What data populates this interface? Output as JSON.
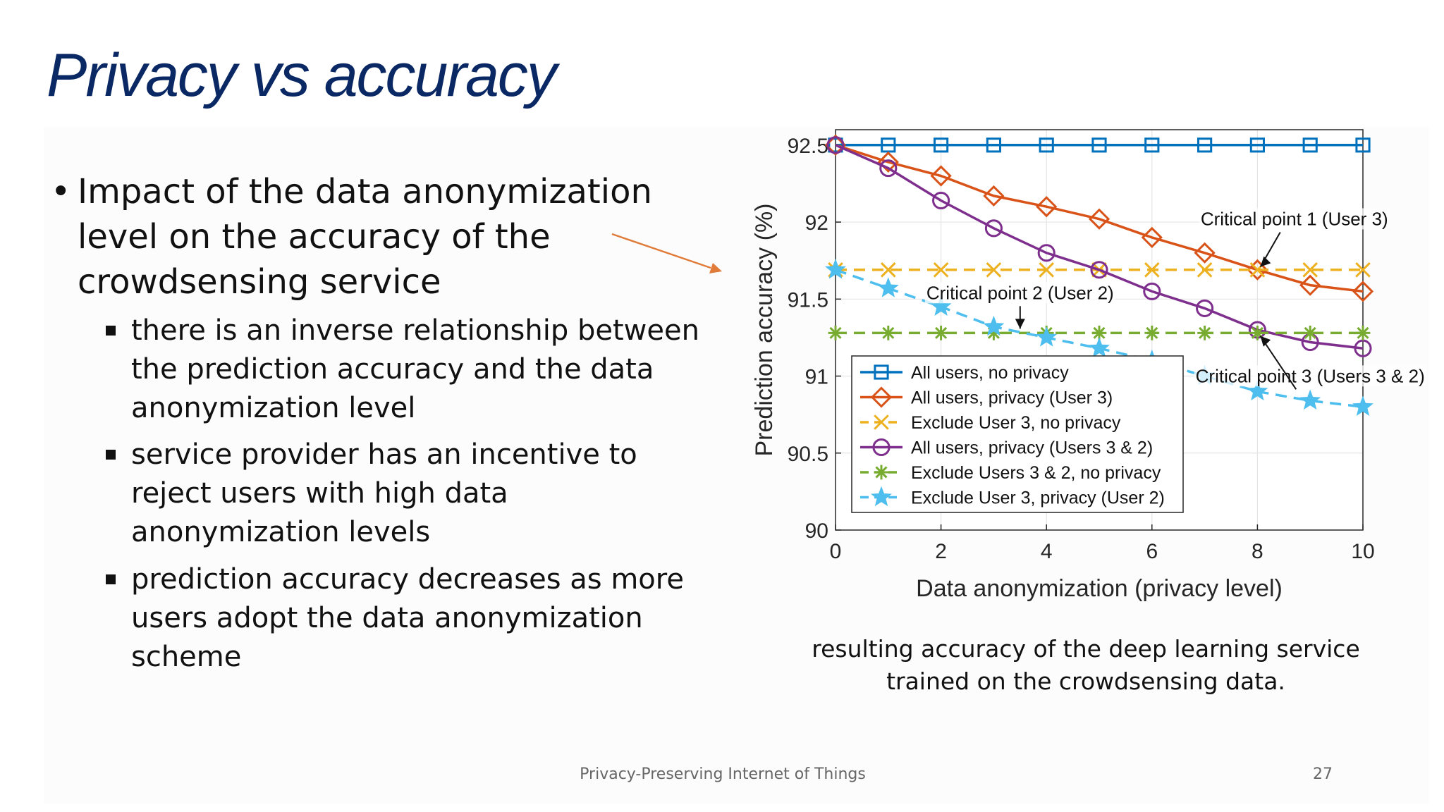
{
  "slide": {
    "title": "Privacy vs accuracy",
    "bullet": "Impact of the data anonymization level on the accuracy of the crowdsensing service",
    "sub_bullets": [
      "there is an inverse relationship between the prediction accuracy and the data anonymization level",
      "service provider has an incentive to reject users with high data anonymization levels",
      "prediction accuracy decreases as more users adopt the data anonymization scheme"
    ],
    "caption": "resulting accuracy of the deep learning service trained on the crowdsensing data.",
    "footer": "Privacy-Preserving Internet of Things",
    "page_number": "27",
    "arrow_color": "#e07b39",
    "title_color": "#0a2864"
  },
  "chart_data": {
    "type": "line",
    "title": "",
    "xlabel": "Data anonymization (privacy level)",
    "ylabel": "Prediction accuracy (%)",
    "xlim": [
      0,
      10
    ],
    "ylim": [
      90,
      92.5
    ],
    "xticks": [
      0,
      2,
      4,
      6,
      8,
      10
    ],
    "yticks": [
      90,
      90.5,
      91,
      91.5,
      92,
      92.5
    ],
    "ytick_labels": [
      "90",
      "90.5",
      "91",
      "91.5",
      "92",
      "92.5"
    ],
    "grid": true,
    "legend_position": "bottom-left",
    "x": [
      0,
      1,
      2,
      3,
      4,
      5,
      6,
      7,
      8,
      9,
      10
    ],
    "series": [
      {
        "name": "All users, no privacy",
        "color": "#0072bd",
        "marker": "square",
        "dash": false,
        "values": [
          92.5,
          92.5,
          92.5,
          92.5,
          92.5,
          92.5,
          92.5,
          92.5,
          92.5,
          92.5,
          92.5
        ]
      },
      {
        "name": "All users, privacy (User 3)",
        "color": "#d95319",
        "marker": "diamond",
        "dash": false,
        "values": [
          92.5,
          92.39,
          92.3,
          92.17,
          92.1,
          92.02,
          91.9,
          91.8,
          91.69,
          91.59,
          91.55
        ]
      },
      {
        "name": "Exclude User 3, no privacy",
        "color": "#edb120",
        "marker": "x",
        "dash": true,
        "values": [
          91.69,
          91.69,
          91.69,
          91.69,
          91.69,
          91.69,
          91.69,
          91.69,
          91.69,
          91.69,
          91.69
        ]
      },
      {
        "name": "All users, privacy (Users 3 & 2)",
        "color": "#7e2f8e",
        "marker": "circle",
        "dash": false,
        "values": [
          92.5,
          92.35,
          92.14,
          91.96,
          91.8,
          91.69,
          91.55,
          91.44,
          91.3,
          91.22,
          91.18
        ]
      },
      {
        "name": "Exclude Users 3 & 2, no privacy",
        "color": "#77ac30",
        "marker": "asterisk",
        "dash": true,
        "values": [
          91.28,
          91.28,
          91.28,
          91.28,
          91.28,
          91.28,
          91.28,
          91.28,
          91.28,
          91.28,
          91.28
        ]
      },
      {
        "name": "Exclude User 3, privacy (User 2)",
        "color": "#4dbeee",
        "marker": "star",
        "dash": true,
        "values": [
          91.69,
          91.57,
          91.45,
          91.32,
          91.25,
          91.18,
          91.1,
          91.0,
          90.9,
          90.84,
          90.8
        ]
      }
    ],
    "annotations": [
      {
        "text": "Critical point 1 (User 3)",
        "point": [
          8,
          91.69
        ],
        "label_at": [
          8.7,
          91.98
        ]
      },
      {
        "text": "Critical point 2 (User 2)",
        "point": [
          3.5,
          91.28
        ],
        "label_at": [
          3.5,
          91.5
        ]
      },
      {
        "text": "Critical point 3 (Users 3 & 2)",
        "point": [
          8,
          91.28
        ],
        "label_at": [
          9.0,
          90.96
        ]
      }
    ]
  }
}
